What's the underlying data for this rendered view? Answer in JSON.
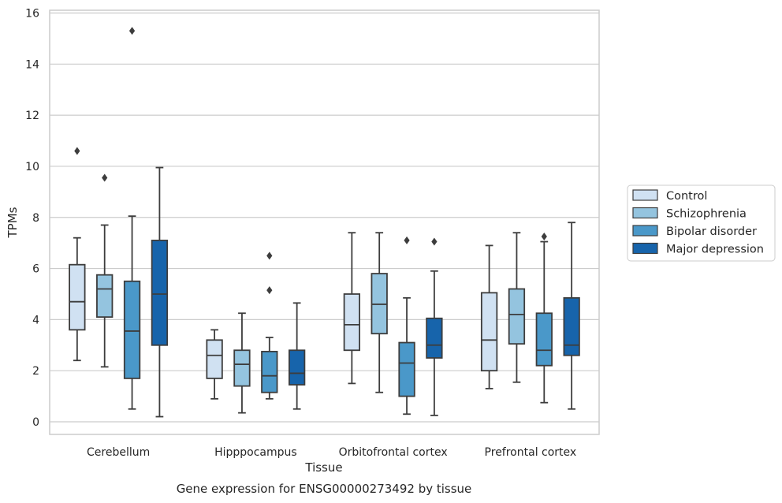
{
  "chart_data": {
    "type": "boxplot",
    "title": "",
    "caption": "Gene expression for ENSG00000273492 by tissue",
    "xlabel": "Tissue",
    "ylabel": "TPMs",
    "ylim": [
      -0.5,
      16.1
    ],
    "yticks": [
      0,
      2,
      4,
      6,
      8,
      10,
      12,
      14,
      16
    ],
    "ytick_labels": [
      "0",
      "2",
      "4",
      "6",
      "8",
      "10",
      "12",
      "14",
      "16"
    ],
    "grid": "horizontal",
    "legend_position": "right",
    "categories": [
      "Cerebellum",
      "Hipppocampus",
      "Orbitofrontal cortex",
      "Prefrontal cortex"
    ],
    "series": [
      {
        "name": "Control",
        "color": "#d0e1f2",
        "boxes": [
          {
            "whislo": 2.4,
            "q1": 3.6,
            "med": 4.7,
            "q3": 6.15,
            "whishi": 7.2,
            "fliers": [
              10.6
            ]
          },
          {
            "whislo": 0.9,
            "q1": 1.7,
            "med": 2.6,
            "q3": 3.2,
            "whishi": 3.6,
            "fliers": []
          },
          {
            "whislo": 1.5,
            "q1": 2.8,
            "med": 3.8,
            "q3": 5.0,
            "whishi": 7.4,
            "fliers": []
          },
          {
            "whislo": 1.3,
            "q1": 2.0,
            "med": 3.2,
            "q3": 5.05,
            "whishi": 6.9,
            "fliers": []
          }
        ]
      },
      {
        "name": "Schizophrenia",
        "color": "#94c4df",
        "boxes": [
          {
            "whislo": 2.15,
            "q1": 4.1,
            "med": 5.2,
            "q3": 5.75,
            "whishi": 7.7,
            "fliers": [
              9.55
            ]
          },
          {
            "whislo": 0.35,
            "q1": 1.4,
            "med": 2.25,
            "q3": 2.8,
            "whishi": 4.25,
            "fliers": []
          },
          {
            "whislo": 1.15,
            "q1": 3.45,
            "med": 4.6,
            "q3": 5.8,
            "whishi": 7.4,
            "fliers": []
          },
          {
            "whislo": 1.55,
            "q1": 3.05,
            "med": 4.2,
            "q3": 5.2,
            "whishi": 7.4,
            "fliers": []
          }
        ]
      },
      {
        "name": "Bipolar disorder",
        "color": "#4a98c9",
        "boxes": [
          {
            "whislo": 0.5,
            "q1": 1.7,
            "med": 3.55,
            "q3": 5.5,
            "whishi": 8.05,
            "fliers": [
              15.3
            ]
          },
          {
            "whislo": 0.9,
            "q1": 1.15,
            "med": 1.8,
            "q3": 2.75,
            "whishi": 3.3,
            "fliers": [
              5.15,
              6.5
            ]
          },
          {
            "whislo": 0.3,
            "q1": 1.0,
            "med": 2.3,
            "q3": 3.1,
            "whishi": 4.85,
            "fliers": [
              7.1
            ]
          },
          {
            "whislo": 0.75,
            "q1": 2.2,
            "med": 2.8,
            "q3": 4.25,
            "whishi": 7.05,
            "fliers": [
              7.25
            ]
          }
        ]
      },
      {
        "name": "Major depression",
        "color": "#1764ab",
        "boxes": [
          {
            "whislo": 0.2,
            "q1": 3.0,
            "med": 5.0,
            "q3": 7.1,
            "whishi": 9.95,
            "fliers": []
          },
          {
            "whislo": 0.5,
            "q1": 1.45,
            "med": 1.9,
            "q3": 2.8,
            "whishi": 4.65,
            "fliers": []
          },
          {
            "whislo": 0.25,
            "q1": 2.5,
            "med": 3.0,
            "q3": 4.05,
            "whishi": 5.9,
            "fliers": [
              7.05
            ]
          },
          {
            "whislo": 0.5,
            "q1": 2.6,
            "med": 3.0,
            "q3": 4.85,
            "whishi": 7.8,
            "fliers": []
          }
        ]
      }
    ]
  }
}
